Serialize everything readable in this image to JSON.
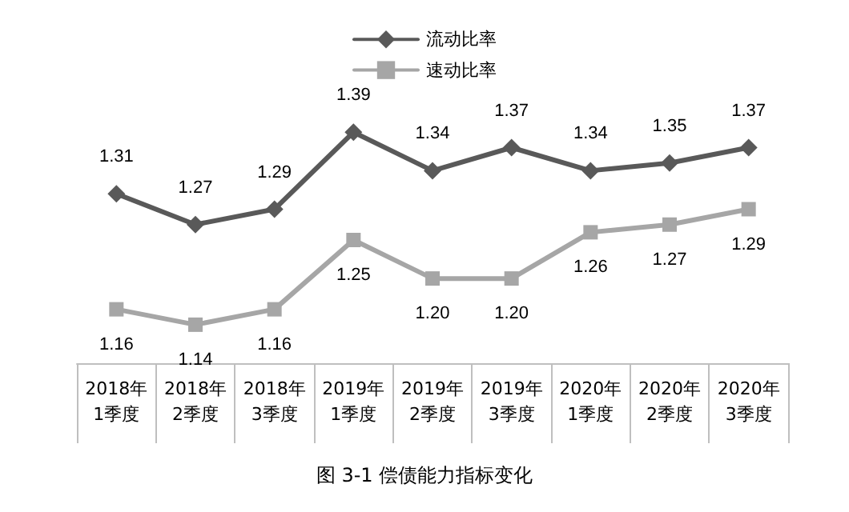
{
  "chart_data": {
    "type": "line",
    "title": "图 3-1 偿债能力指标变化",
    "categories": [
      "2018年\n1季度",
      "2018年\n2季度",
      "2018年\n3季度",
      "2019年\n1季度",
      "2019年\n2季度",
      "2019年\n3季度",
      "2020年\n1季度",
      "2020年\n2季度",
      "2020年\n3季度"
    ],
    "series": [
      {
        "name": "流动比率",
        "color": "#595959",
        "marker": "diamond",
        "values": [
          1.31,
          1.27,
          1.29,
          1.39,
          1.34,
          1.37,
          1.34,
          1.35,
          1.37
        ],
        "value_labels": [
          "1.31",
          "1.27",
          "1.29",
          "1.39",
          "1.34",
          "1.37",
          "1.34",
          "1.35",
          "1.37"
        ]
      },
      {
        "name": "速动比率",
        "color": "#a6a6a6",
        "marker": "square",
        "values": [
          1.16,
          1.14,
          1.16,
          1.25,
          1.2,
          1.2,
          1.26,
          1.27,
          1.29
        ],
        "value_labels": [
          "1.16",
          "1.14",
          "1.16",
          "1.25",
          "1.20",
          "1.20",
          "1.26",
          "1.27",
          "1.29"
        ]
      }
    ],
    "legend": "top",
    "grid": false,
    "line_style": "solid"
  }
}
